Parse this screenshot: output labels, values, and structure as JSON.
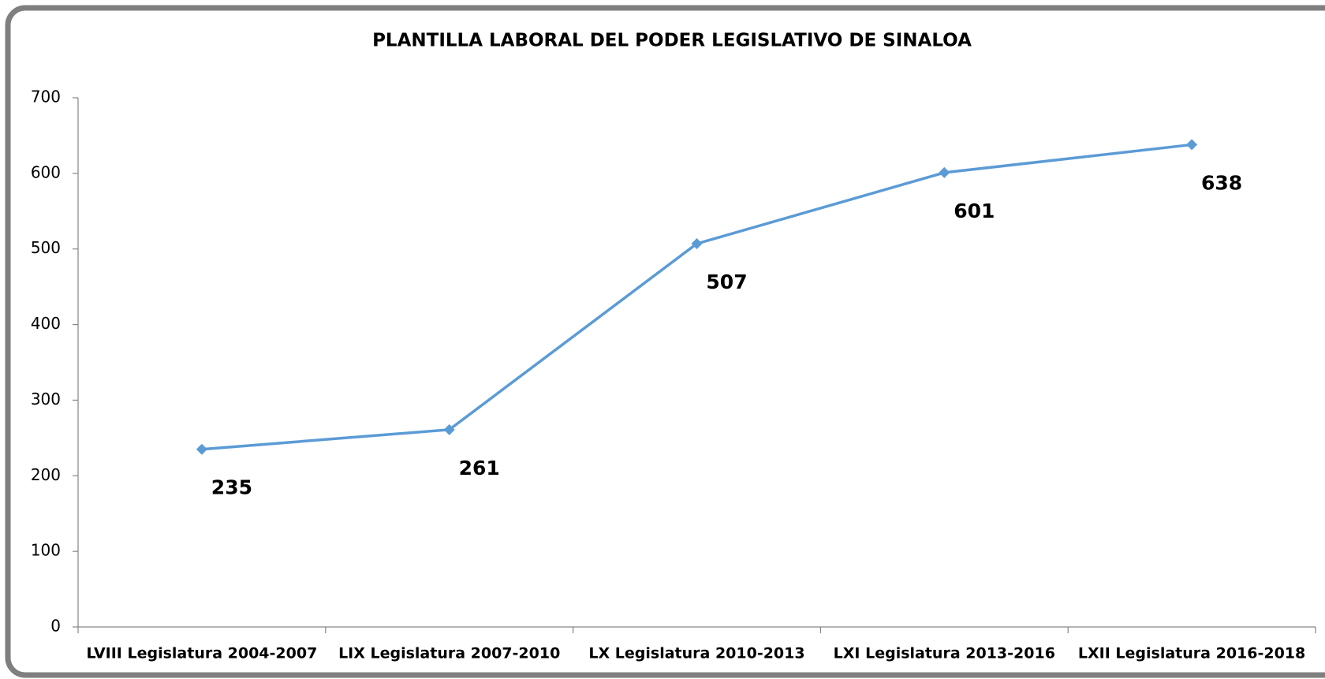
{
  "chart_data": {
    "type": "line",
    "title": "PLANTILLA LABORAL DEL PODER LEGISLATIVO DE SINALOA",
    "categories": [
      "LVIII Legislatura 2004-2007",
      "LIX Legislatura 2007-2010",
      "LX Legislatura 2010-2013",
      "LXI Legislatura 2013-2016",
      "LXII Legislatura 2016-2018"
    ],
    "series": [
      {
        "name": "Plantilla laboral",
        "color": "#5b9bd5",
        "values": [
          235,
          261,
          507,
          601,
          638
        ]
      }
    ],
    "ylim": [
      0,
      700
    ],
    "yticks": [
      0,
      100,
      200,
      300,
      400,
      500,
      600,
      700
    ],
    "grid": false
  }
}
